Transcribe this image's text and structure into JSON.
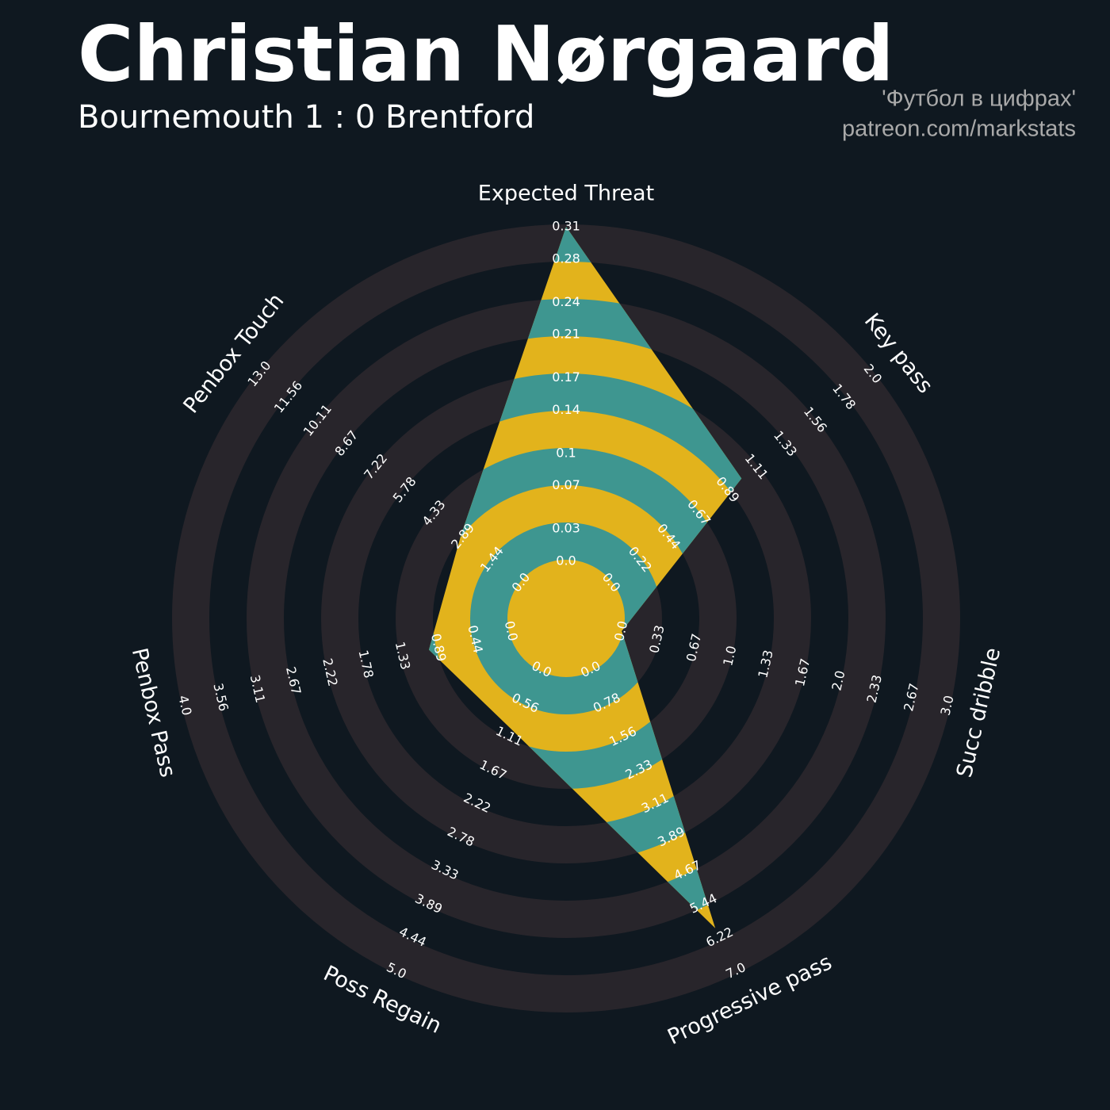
{
  "chart_data": {
    "type": "radar",
    "title": "Christian Nørgaard",
    "subtitle": "Bournemouth 1 : 0 Brentford",
    "credits": [
      "'Футбол в цифрах'",
      "patreon.com/markstats"
    ],
    "categories": [
      "Expected Threat",
      "Key pass",
      "Succ dribble",
      "Progressive pass",
      "Poss Regain",
      "Penbox Pass",
      "Penbox Touch"
    ],
    "values": [
      0.31,
      1.0,
      0.0,
      6.0,
      1.0,
      1.0,
      3.0
    ],
    "ranges": [
      [
        0,
        0.31
      ],
      [
        0,
        2
      ],
      [
        0,
        3
      ],
      [
        0,
        7
      ],
      [
        0,
        5
      ],
      [
        0,
        4
      ],
      [
        0,
        13
      ]
    ],
    "ticks": [
      [
        {
          "value": 0,
          "label": "0.0"
        },
        0.03,
        0.07,
        0.1,
        0.14,
        0.17,
        0.21,
        0.24,
        0.28,
        0.31
      ],
      [
        {
          "value": 0,
          "label": "0.0"
        },
        0.22,
        0.44,
        0.67,
        0.89,
        1.11,
        1.33,
        1.56,
        1.78,
        {
          "value": 2,
          "label": "2.0"
        }
      ],
      [
        {
          "value": 0,
          "label": "0.0"
        },
        0.33,
        0.67,
        {
          "value": 1,
          "label": "1.0"
        },
        1.33,
        1.67,
        {
          "value": 2,
          "label": "2.0"
        },
        2.33,
        2.67,
        {
          "value": 3,
          "label": "3.0"
        }
      ],
      [
        {
          "value": 0,
          "label": "0.0"
        },
        0.78,
        1.56,
        2.33,
        3.11,
        3.89,
        4.67,
        5.44,
        6.22,
        {
          "value": 7,
          "label": "7.0"
        }
      ],
      [
        {
          "value": 0,
          "label": "0.0"
        },
        0.56,
        1.11,
        1.67,
        2.22,
        2.78,
        3.33,
        3.89,
        4.44,
        {
          "value": 5,
          "label": "5.0"
        }
      ],
      [
        {
          "value": 0,
          "label": "0.0"
        },
        0.44,
        0.89,
        1.33,
        1.78,
        2.22,
        2.67,
        3.11,
        3.56,
        {
          "value": 4,
          "label": "4.0"
        }
      ],
      [
        {
          "value": 0,
          "label": "0.0"
        },
        1.44,
        2.89,
        4.33,
        5.78,
        7.22,
        8.67,
        10.11,
        11.56,
        {
          "value": 13,
          "label": "13.0"
        }
      ]
    ],
    "fill_colors": [
      "#e2b31c",
      "#3e9690"
    ]
  }
}
